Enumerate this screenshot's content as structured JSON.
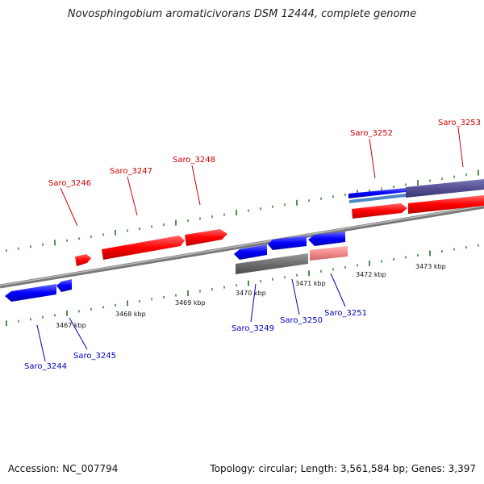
{
  "title": "Novosphingobium aromaticivorans DSM 12444, complete genome",
  "footer": {
    "accession": "Accession: NC_007794",
    "stats": "Topology: circular; Length: 3,561,584 bp; Genes: 3,397"
  },
  "colors": {
    "forward_label": "#cc0000",
    "reverse_label": "#0000bb",
    "backbone": "#888888",
    "tick": "#227722"
  },
  "kbp_ticks": [
    "3467 kbp",
    "3468 kbp",
    "3469 kbp",
    "3470 kbp",
    "3471 kbp",
    "3472 kbp",
    "3473 kbp"
  ],
  "forward_genes": [
    "Saro_3246",
    "Saro_3247",
    "Saro_3248",
    "Saro_3252",
    "Saro_3253"
  ],
  "reverse_genes": [
    "Saro_3244",
    "Saro_3245",
    "Saro_3249",
    "Saro_3250",
    "Saro_3251"
  ]
}
